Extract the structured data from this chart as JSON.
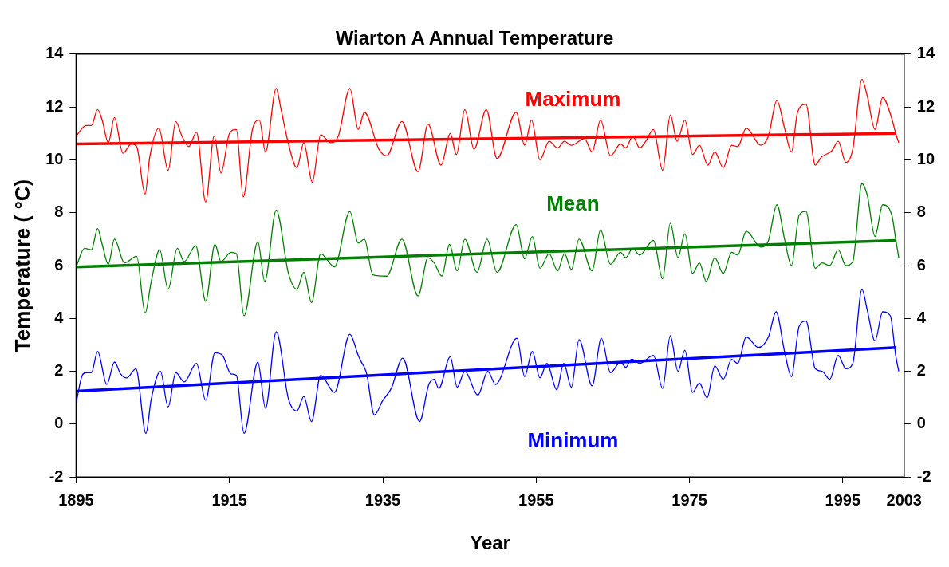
{
  "chart_data": {
    "type": "line",
    "title": "Wiarton A Annual Temperature",
    "xlabel": "Year",
    "ylabel": "Temperature ( °C)",
    "xlim": [
      1895,
      2003
    ],
    "xticks": [
      1895,
      1915,
      1935,
      1955,
      1975,
      1995,
      2003
    ],
    "ylim": [
      -2,
      14
    ],
    "yticks": [
      -2,
      0,
      2,
      4,
      6,
      8,
      10,
      12,
      14
    ],
    "y2lim": [
      -2,
      14
    ],
    "y2ticks": [
      -2,
      0,
      2,
      4,
      6,
      8,
      10,
      12,
      14
    ],
    "grid": false,
    "legend": false,
    "marker": "none",
    "line_style": "solid",
    "series": [
      {
        "name": "Maximum",
        "color": "#ff0000",
        "x": [
          1895,
          1896.3,
          1897,
          1897.8,
          1898.4,
          1899.2,
          1900,
          1901.1,
          1902.2,
          1902.9,
          1904,
          1904.6,
          1905.8,
          1907,
          1908,
          1908.8,
          1909.7,
          1910.7,
          1911.9,
          1913,
          1913.9,
          1915,
          1915.9,
          1916.8,
          1918,
          1918.9,
          1919.7,
          1921.1,
          1921.7,
          1922.7,
          1923.8,
          1924.7,
          1925.8,
          1926.9,
          1928.2,
          1929.2,
          1930.7,
          1931.8,
          1932.6,
          1934.5,
          1935.5,
          1937.5,
          1939.6,
          1940.9,
          1942.6,
          1943.8,
          1944.6,
          1945.7,
          1946.9,
          1948.5,
          1949.9,
          1952.4,
          1953.5,
          1954.4,
          1955.5,
          1956.7,
          1957.8,
          1958.7,
          1959.6,
          1961.3,
          1962.3,
          1963.4,
          1964.7,
          1966,
          1966.7,
          1967.6,
          1968.5,
          1969.3,
          1970.3,
          1971.5,
          1972.5,
          1973.4,
          1974.4,
          1975.4,
          1976.3,
          1977.4,
          1978.3,
          1979.4,
          1980.5,
          1981.3,
          1982.4,
          1984.3,
          1985.3,
          1986.4,
          1987.4,
          1988.3,
          1989.1,
          1990.2,
          1991.4,
          1992.2,
          1993.6,
          1994.4,
          1995.4,
          1996.3,
          1997.5,
          1998.2,
          1999.2,
          2000.2,
          2001.4,
          2001.9,
          2002.3
        ],
        "values": [
          10.9,
          11.3,
          11.3,
          11.9,
          11.5,
          10.65,
          11.6,
          10.25,
          10.6,
          10.5,
          8.7,
          10.1,
          11.2,
          9.6,
          11.45,
          10.9,
          10.5,
          11.05,
          8.4,
          10.9,
          9.5,
          11,
          11.15,
          8.6,
          11.15,
          11.5,
          10.3,
          12.7,
          11.95,
          10.6,
          9.7,
          10.65,
          9.15,
          10.95,
          10.65,
          10.9,
          12.7,
          11.15,
          11.8,
          10.4,
          10.15,
          11.45,
          9.55,
          11.35,
          9.8,
          11,
          10.2,
          11.9,
          10.4,
          11.9,
          10.05,
          11.8,
          10.55,
          11.5,
          10,
          10.7,
          10.45,
          10.7,
          10.55,
          10.8,
          10.3,
          11.5,
          10.15,
          10.6,
          10.45,
          10.9,
          10.45,
          10.7,
          11.15,
          9.6,
          11.7,
          10.7,
          11.5,
          10.2,
          10.55,
          9.8,
          10.3,
          9.7,
          10.55,
          10.5,
          11.2,
          10.55,
          10.9,
          12.25,
          11.2,
          10.3,
          11.8,
          12.1,
          9.8,
          10.1,
          10.35,
          10.7,
          9.9,
          10.4,
          13.05,
          12.4,
          11.15,
          12.35,
          11.55,
          11,
          10.65
        ]
      },
      {
        "name": "Mean",
        "color": "#008000",
        "x": [
          1895,
          1896.1,
          1897,
          1897.8,
          1898.4,
          1899.2,
          1900,
          1901.3,
          1902.9,
          1904,
          1904.8,
          1905.9,
          1907,
          1908.2,
          1909.1,
          1910.6,
          1911.9,
          1913.1,
          1913.9,
          1915.2,
          1915.9,
          1916.9,
          1918.7,
          1919.6,
          1921.1,
          1922.7,
          1923.8,
          1924.7,
          1925.7,
          1926.9,
          1928.7,
          1930.7,
          1931.8,
          1932.6,
          1933.7,
          1935.5,
          1937.5,
          1939.6,
          1940.9,
          1941.7,
          1942.7,
          1943.7,
          1944.7,
          1945.7,
          1947.3,
          1948.6,
          1949.9,
          1952.4,
          1953.5,
          1954.5,
          1955.5,
          1956.7,
          1957.8,
          1958.7,
          1959.6,
          1960.6,
          1962.3,
          1963.4,
          1964.7,
          1966,
          1966.7,
          1967.6,
          1968.5,
          1970.3,
          1971.5,
          1972.5,
          1973.5,
          1974.4,
          1975.4,
          1976.3,
          1977.2,
          1978.3,
          1979.4,
          1980.5,
          1981.3,
          1982.4,
          1984.3,
          1985.3,
          1986.4,
          1987.4,
          1988.3,
          1989.3,
          1990.2,
          1991.4,
          1992.3,
          1993.3,
          1994.4,
          1995.4,
          1996.3,
          1997.5,
          1998.2,
          1999.2,
          2000.2,
          2001.4,
          2001.9,
          2002.3
        ],
        "values": [
          5.95,
          6.65,
          6.6,
          7.4,
          6.8,
          6.05,
          7,
          6.1,
          6.35,
          4.2,
          5.4,
          6.6,
          5.1,
          6.65,
          6.15,
          6.75,
          4.65,
          6.8,
          6.15,
          6.5,
          6.45,
          4.1,
          6.9,
          5.4,
          8.1,
          5.7,
          5.1,
          5.75,
          4.6,
          6.45,
          5.95,
          8.05,
          6.85,
          7,
          5.65,
          5.6,
          7,
          4.85,
          6.3,
          6.1,
          5.6,
          6.8,
          5.8,
          7,
          5.75,
          7,
          5.75,
          7.55,
          6.25,
          7.1,
          5.9,
          6.45,
          5.8,
          6.45,
          5.85,
          7,
          5.8,
          7.35,
          6.05,
          6.5,
          6.3,
          6.65,
          6.4,
          6.95,
          5.5,
          7.6,
          6.3,
          7.2,
          5.7,
          6.1,
          5.4,
          6.3,
          5.7,
          6.5,
          6.4,
          7.3,
          6.7,
          6.95,
          8.3,
          7,
          6,
          7.9,
          8.05,
          5.9,
          6.1,
          6,
          6.6,
          6,
          6.15,
          9.1,
          8.65,
          7.1,
          8.3,
          7.9,
          7,
          6.3
        ]
      },
      {
        "name": "Minimum",
        "color": "#0000ff",
        "x": [
          1895,
          1895.8,
          1896.3,
          1897,
          1897.8,
          1899,
          1900,
          1900.8,
          1901.6,
          1902.8,
          1904.1,
          1904.8,
          1906,
          1907,
          1908,
          1909.1,
          1910.7,
          1911.9,
          1913.1,
          1914.1,
          1915.2,
          1915.9,
          1916.9,
          1918.7,
          1919.7,
          1921.1,
          1922.7,
          1923.8,
          1924.7,
          1925.7,
          1926.9,
          1928.7,
          1930.7,
          1931.8,
          1932.3,
          1932.6,
          1932.9,
          1933.9,
          1935,
          1936.1,
          1937.6,
          1939.8,
          1941,
          1941.7,
          1942.3,
          1943.8,
          1944.7,
          1945.7,
          1947.4,
          1948.7,
          1949.7,
          1952.5,
          1953.5,
          1954.5,
          1955.5,
          1956.4,
          1957.7,
          1958.6,
          1959.6,
          1960.6,
          1962.3,
          1963.5,
          1964.7,
          1966,
          1966.7,
          1967.4,
          1967.6,
          1968.5,
          1970.3,
          1971.5,
          1972.5,
          1973.5,
          1974.4,
          1975.4,
          1976.3,
          1977.3,
          1978.3,
          1979.4,
          1980.5,
          1981.3,
          1982.4,
          1984,
          1985.3,
          1986.3,
          1987.4,
          1988.3,
          1989.3,
          1990.2,
          1991.4,
          1992.3,
          1993.3,
          1994.4,
          1995.4,
          1996.3,
          1997.5,
          1998.2,
          1999.2,
          2000.2,
          2001.2,
          2001.9,
          2002.3
        ],
        "values": [
          0.8,
          1.85,
          1.95,
          1.95,
          2.75,
          1.5,
          2.35,
          1.9,
          1.75,
          2.1,
          -0.35,
          0.95,
          2,
          0.65,
          1.95,
          1.6,
          2.3,
          0.9,
          2.7,
          2.6,
          1.9,
          1.85,
          -0.35,
          2.35,
          0.6,
          3.5,
          0.95,
          0.5,
          1.05,
          0.1,
          1.85,
          1.2,
          3.4,
          2.6,
          2.3,
          2.15,
          1.9,
          0.35,
          0.9,
          1.35,
          2.5,
          0.1,
          1.5,
          1.7,
          1.35,
          2.55,
          1.4,
          2,
          1.1,
          2,
          1.5,
          3.25,
          1.8,
          2.75,
          1.75,
          2.3,
          1.3,
          2.3,
          1.4,
          3.2,
          1.45,
          3.25,
          1.95,
          2.35,
          2.15,
          2.45,
          2.45,
          2.3,
          2.6,
          1.35,
          3.35,
          2,
          2.8,
          1.2,
          1.55,
          1,
          2.2,
          1.7,
          2.45,
          2.3,
          3.3,
          2.9,
          3.3,
          4.25,
          2.75,
          1.8,
          3.7,
          3.9,
          2.1,
          2,
          1.7,
          2.6,
          2.1,
          2.3,
          5.1,
          4.3,
          3.15,
          4.25,
          4.1,
          2.6,
          2
        ]
      },
      {
        "type": "line",
        "color": "#ff0000",
        "x": [
          1895,
          2002
        ],
        "values": [
          10.6,
          11
        ]
      },
      {
        "type": "line",
        "color": "#008000",
        "x": [
          1895,
          2002
        ],
        "values": [
          5.95,
          6.95
        ]
      },
      {
        "type": "line",
        "color": "#0000ff",
        "x": [
          1895,
          2002
        ],
        "values": [
          1.25,
          2.9
        ]
      }
    ]
  }
}
